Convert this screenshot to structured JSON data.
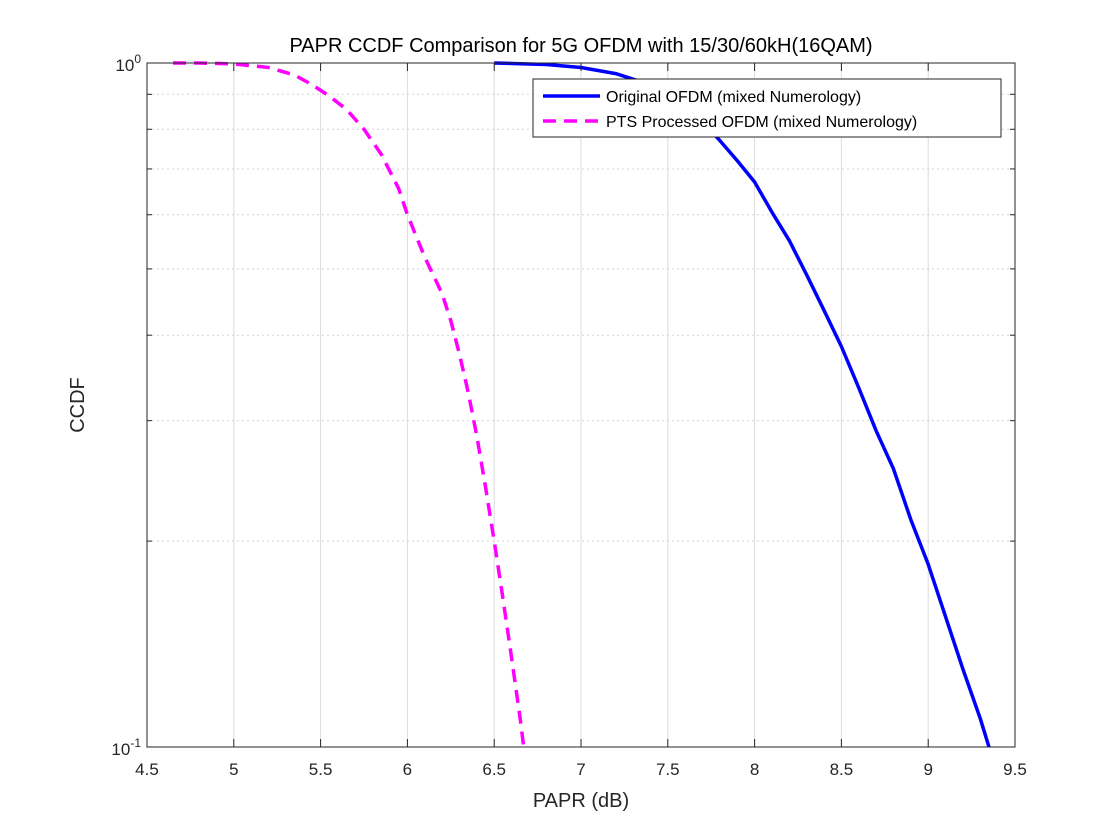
{
  "chart_data": {
    "type": "line",
    "title": "PAPR CCDF Comparison for 5G OFDM with 15/30/60kH(16QAM)",
    "xlabel": "PAPR (dB)",
    "ylabel": "CCDF",
    "xlim": [
      4.5,
      9.5
    ],
    "ylim": [
      0.1,
      1
    ],
    "y_scale": "log",
    "grid": true,
    "legend_position": "top-right",
    "x_ticks": [
      "4.5",
      "5",
      "5.5",
      "6",
      "6.5",
      "7",
      "7.5",
      "8",
      "8.5",
      "9",
      "9.5"
    ],
    "y_ticks": [
      {
        "base": "10",
        "exp": "0",
        "value": 1
      },
      {
        "base": "10",
        "exp": "-1",
        "value": 0.1
      }
    ],
    "series": [
      {
        "name": "Original OFDM (mixed Numerology)",
        "color": "#0000ff",
        "style": "solid",
        "x": [
          6.5,
          6.8,
          7.0,
          7.2,
          7.4,
          7.55,
          7.7,
          7.8,
          7.9,
          8.0,
          8.1,
          8.2,
          8.3,
          8.4,
          8.5,
          8.6,
          8.7,
          8.8,
          8.9,
          9.0,
          9.1,
          9.2,
          9.3,
          9.35
        ],
        "y": [
          1.0,
          0.995,
          0.985,
          0.965,
          0.93,
          0.885,
          0.82,
          0.77,
          0.72,
          0.67,
          0.605,
          0.55,
          0.49,
          0.435,
          0.385,
          0.335,
          0.29,
          0.255,
          0.215,
          0.185,
          0.155,
          0.13,
          0.11,
          0.1
        ]
      },
      {
        "name": "PTS Processed OFDM (mixed Numerology)",
        "color": "#ff00ff",
        "style": "dashed",
        "x": [
          4.65,
          4.8,
          5.0,
          5.2,
          5.35,
          5.45,
          5.55,
          5.65,
          5.75,
          5.85,
          5.95,
          6.0,
          6.1,
          6.2,
          6.25,
          6.3,
          6.35,
          6.4,
          6.45,
          6.5,
          6.55,
          6.6,
          6.65,
          6.67
        ],
        "y": [
          1.0,
          1.0,
          0.997,
          0.985,
          0.96,
          0.93,
          0.895,
          0.855,
          0.8,
          0.735,
          0.655,
          0.6,
          0.52,
          0.46,
          0.42,
          0.375,
          0.33,
          0.285,
          0.24,
          0.2,
          0.165,
          0.135,
          0.11,
          0.1
        ]
      }
    ]
  }
}
